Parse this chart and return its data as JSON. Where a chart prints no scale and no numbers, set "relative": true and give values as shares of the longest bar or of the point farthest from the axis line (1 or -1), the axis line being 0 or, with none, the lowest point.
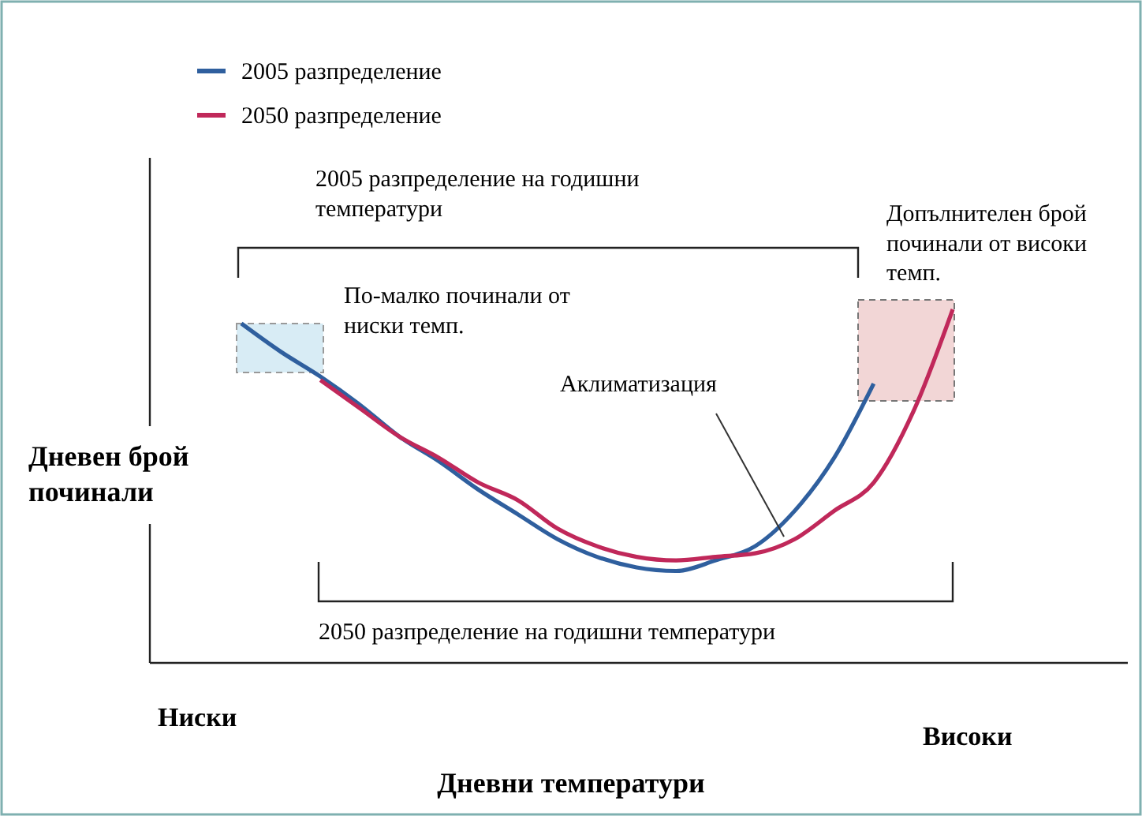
{
  "chart_data": {
    "type": "line",
    "relative": true,
    "xlabel": "Дневни температури",
    "ylabel": "Дневен брой починали",
    "legend": "top left",
    "line_style": "solid",
    "marker": "none",
    "categories": [
      null,
      null,
      null,
      null,
      null,
      null,
      null,
      null,
      null,
      null,
      null,
      null,
      null,
      null,
      null,
      null,
      null,
      null,
      null
    ],
    "series": [
      {
        "name": "2005 разпределение",
        "color": "#2f5f9e",
        "values": [
          0.96,
          0.88,
          0.81,
          0.73,
          0.64,
          0.57,
          0.49,
          0.42,
          0.35,
          0.3,
          0.27,
          0.26,
          0.29,
          0.33,
          0.43,
          0.58,
          0.79,
          null,
          null
        ]
      },
      {
        "name": "2050 разпределение",
        "color": "#c0285a",
        "values": [
          null,
          null,
          0.8,
          0.72,
          0.64,
          0.58,
          0.51,
          0.46,
          0.38,
          0.33,
          0.3,
          0.29,
          0.3,
          0.31,
          0.35,
          0.43,
          0.51,
          0.71,
          1
        ]
      }
    ],
    "annotations": [
      "2005 разпределение на годишни температури",
      "2050 разпределение на годишни температури",
      "По-малко починали от ниски темп.",
      "Допълнителен брой починали от високи темп.",
      "Аклиматизация",
      "Ниски",
      "Високи"
    ]
  }
}
